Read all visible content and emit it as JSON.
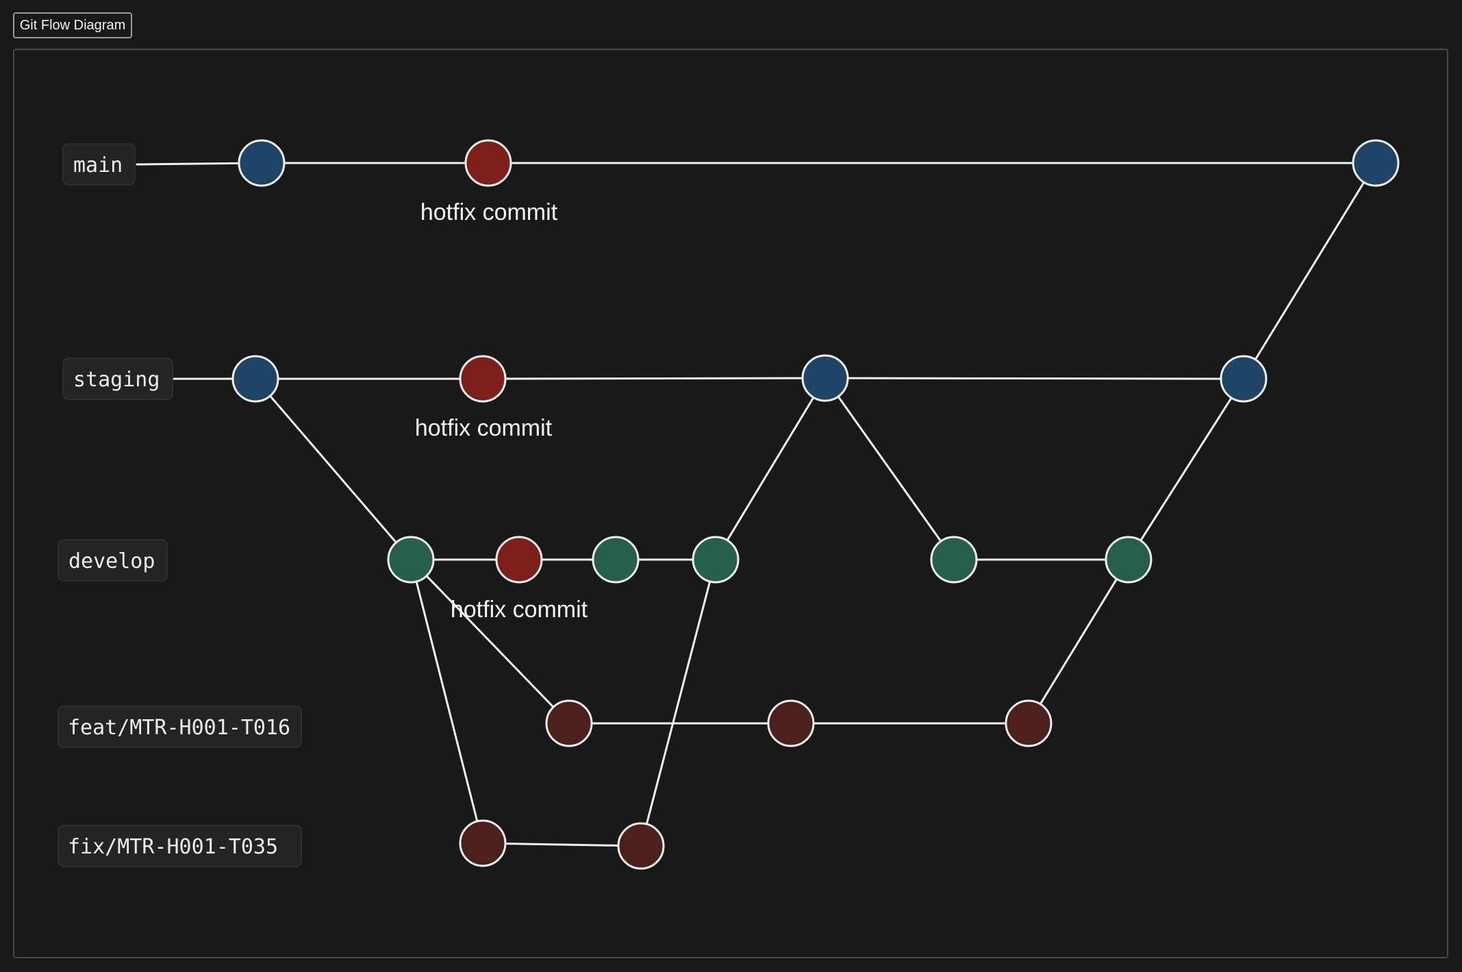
{
  "window": {
    "title": "Git Flow Diagram"
  },
  "colors": {
    "background": "#191919",
    "edge": "#f0f0f0",
    "blue_commit": "#1e4467",
    "hotfix_commit": "#7e1f1a",
    "green_commit": "#27604a",
    "feature_commit": "#4d201d",
    "label_box": "#242424"
  },
  "branches": [
    {
      "id": "main",
      "label": "main"
    },
    {
      "id": "staging",
      "label": "staging"
    },
    {
      "id": "develop",
      "label": "develop"
    },
    {
      "id": "feat",
      "label": "feat/MTR-H001-T016"
    },
    {
      "id": "fix",
      "label": "fix/MTR-H001-T035"
    }
  ],
  "commit_labels": {
    "main_hotfix": "hotfix commit",
    "staging_hotfix": "hotfix commit",
    "develop_hotfix": "hotfix commit"
  },
  "commits": [
    {
      "id": "m1",
      "branch": "main",
      "kind": "blue"
    },
    {
      "id": "m2",
      "branch": "main",
      "kind": "hotfix"
    },
    {
      "id": "m3",
      "branch": "main",
      "kind": "blue"
    },
    {
      "id": "s1",
      "branch": "staging",
      "kind": "blue"
    },
    {
      "id": "s2",
      "branch": "staging",
      "kind": "hotfix"
    },
    {
      "id": "s3",
      "branch": "staging",
      "kind": "blue"
    },
    {
      "id": "s4",
      "branch": "staging",
      "kind": "blue"
    },
    {
      "id": "d1",
      "branch": "develop",
      "kind": "green"
    },
    {
      "id": "d2",
      "branch": "develop",
      "kind": "hotfix"
    },
    {
      "id": "d3",
      "branch": "develop",
      "kind": "green"
    },
    {
      "id": "d4",
      "branch": "develop",
      "kind": "green"
    },
    {
      "id": "d5",
      "branch": "develop",
      "kind": "green"
    },
    {
      "id": "d6",
      "branch": "develop",
      "kind": "green"
    },
    {
      "id": "f1",
      "branch": "feat",
      "kind": "feature"
    },
    {
      "id": "f2",
      "branch": "feat",
      "kind": "feature"
    },
    {
      "id": "f3",
      "branch": "feat",
      "kind": "feature"
    },
    {
      "id": "x1",
      "branch": "fix",
      "kind": "feature"
    },
    {
      "id": "x2",
      "branch": "fix",
      "kind": "feature"
    }
  ],
  "edges": [
    [
      "main-label",
      "m1"
    ],
    [
      "m1",
      "m2"
    ],
    [
      "m2",
      "m3"
    ],
    [
      "staging-label",
      "s1"
    ],
    [
      "s1",
      "s2"
    ],
    [
      "s2",
      "s3"
    ],
    [
      "s3",
      "s4"
    ],
    [
      "s4",
      "m3"
    ],
    [
      "s1",
      "d1"
    ],
    [
      "d1",
      "d2"
    ],
    [
      "d2",
      "d3"
    ],
    [
      "d3",
      "d4"
    ],
    [
      "d4",
      "s3"
    ],
    [
      "s3",
      "d5"
    ],
    [
      "d5",
      "d6"
    ],
    [
      "d6",
      "s4"
    ],
    [
      "d1",
      "f1"
    ],
    [
      "f1",
      "f2"
    ],
    [
      "f2",
      "f3"
    ],
    [
      "f3",
      "d6"
    ],
    [
      "d1",
      "x1"
    ],
    [
      "x1",
      "x2"
    ],
    [
      "x2",
      "d4"
    ]
  ]
}
